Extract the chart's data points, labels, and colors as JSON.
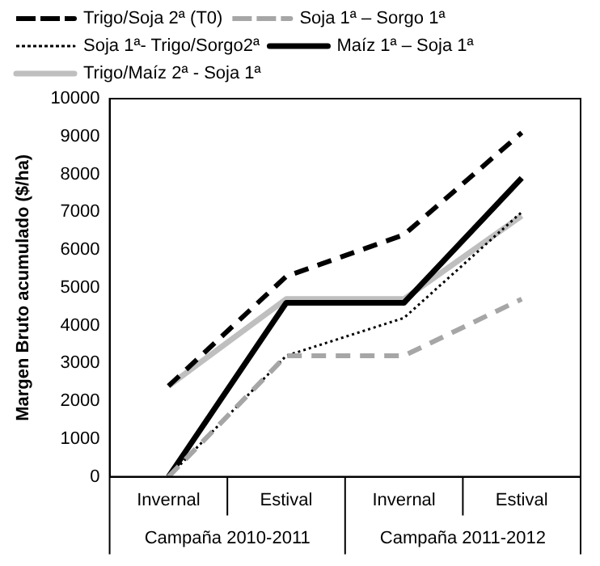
{
  "chart_data": {
    "type": "line",
    "ylabel": "Margen Bruto acumulado ($/ha)",
    "categories": [
      "Invernal",
      "Estival",
      "Invernal",
      "Estival"
    ],
    "annotations": [
      "Campaña 2010-2011",
      "Campaña 2011-2012"
    ],
    "series": [
      {
        "name": "Trigo/Soja 2ª (T0)",
        "color": "#000000",
        "line_style": "dashed",
        "values": [
          2400,
          5300,
          6400,
          9100
        ]
      },
      {
        "name": "Soja 1ª – Sorgo 1ª",
        "color": "#a6a6a6",
        "line_style": "dashed",
        "values": [
          0,
          3200,
          3200,
          4700
        ]
      },
      {
        "name": "Soja 1ª- Trigo/Sorgo2ª",
        "color": "#000000",
        "line_style": "dotted",
        "values": [
          0,
          3200,
          4200,
          7000
        ]
      },
      {
        "name": "Maíz 1ª – Soja 1ª",
        "color": "#000000",
        "line_style": "solid",
        "values": [
          0,
          4600,
          4600,
          7900
        ]
      },
      {
        "name": "Trigo/Maíz 2ª - Soja 1ª",
        "color": "#bfbfbf",
        "line_style": "solid",
        "values": [
          2400,
          4700,
          4700,
          6900
        ]
      }
    ],
    "ylim": [
      0,
      10000
    ],
    "yticks": [
      0,
      1000,
      2000,
      3000,
      4000,
      5000,
      6000,
      7000,
      8000,
      9000,
      10000
    ],
    "grid": false,
    "legend": "top",
    "marker": "none"
  }
}
